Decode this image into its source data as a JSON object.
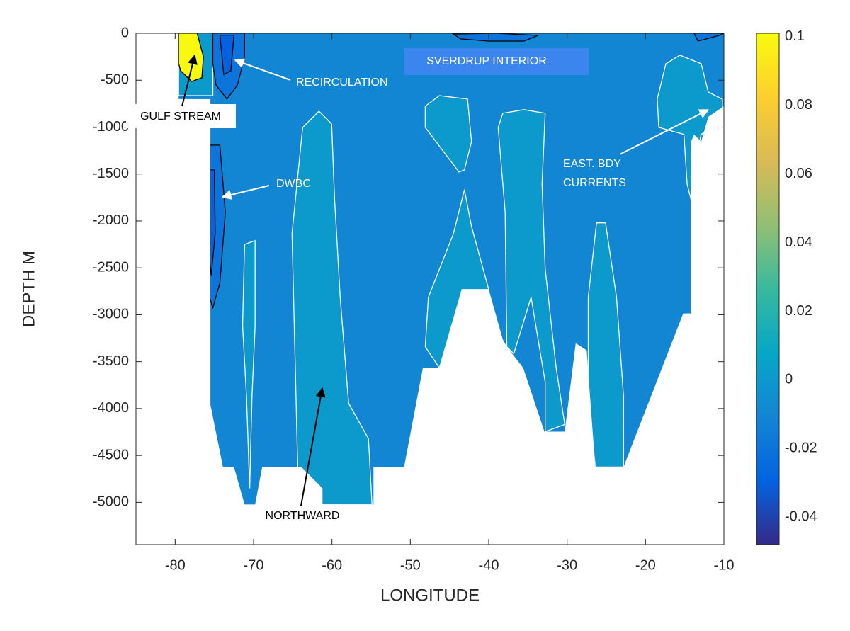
{
  "chart_data": {
    "type": "contour",
    "xlabel": "LONGITUDE",
    "ylabel": "DEPTH M",
    "xlim": [
      -85,
      -10
    ],
    "ylim": [
      -5450,
      0
    ],
    "xticks": [
      -80,
      -70,
      -60,
      -50,
      -40,
      -30,
      -20,
      -10
    ],
    "yticks": [
      0,
      -500,
      -1000,
      -1500,
      -2000,
      -2500,
      -3000,
      -3500,
      -4000,
      -4500,
      -5000
    ],
    "clim": [
      -0.048,
      0.101
    ],
    "cticks": [
      0.1,
      0.08,
      0.06,
      0.04,
      0.02,
      0,
      -0.02,
      -0.04
    ],
    "colormap": [
      "#352a87",
      "#0363e1",
      "#1485d4",
      "#06a7c6",
      "#38b99e",
      "#92bf73",
      "#d9ba56",
      "#fcce2e",
      "#f9fb0e"
    ],
    "regions": [
      {
        "value": -0.01,
        "edge": "none",
        "x": [
          -79.55,
          -10,
          -10,
          -12.0,
          -12.9,
          -13.8,
          -14.2,
          -14.2,
          -15.2,
          -22.8,
          -26.4,
          -27.5,
          -28.9,
          -30.3,
          -32.9,
          -35.6,
          -37.7,
          -38.2,
          -40.0,
          -43.4,
          -46.3,
          -48.4,
          -50.8,
          -54.7,
          -54.7,
          -61.2,
          -61.2,
          -63.9,
          -68.9,
          -69.8,
          -71.15,
          -72.5,
          -73.9,
          -75.5,
          -75.5,
          -79.55
        ],
        "y": [
          0,
          0,
          -777,
          -890,
          -1154,
          -1078,
          -1154,
          -2986,
          -2986,
          -4623,
          -4623,
          -3379,
          -3303,
          -4246,
          -4246,
          -3567,
          -3341,
          -3265,
          -2730,
          -2730,
          -3567,
          -3567,
          -4623,
          -4623,
          -5023,
          -5023,
          -4849,
          -4623,
          -4623,
          -5023,
          -5023,
          -4623,
          -4623,
          -3959,
          -701,
          -701
        ]
      },
      {
        "value": 0,
        "edge": "#ffffff",
        "x": [
          -79.55,
          -75.2,
          -75.2,
          -79.55
        ],
        "y": [
          0,
          0,
          -664,
          -664
        ]
      },
      {
        "value": 0.1,
        "edge": "#000000",
        "x": [
          -79.55,
          -77.2,
          -76.4,
          -76.6,
          -77.9,
          -79.3,
          -79.55
        ],
        "y": [
          0,
          0,
          -249,
          -475,
          -513,
          -400,
          -324
        ]
      },
      {
        "value": -0.02,
        "edge": "#000000",
        "x": [
          -75.2,
          -71.15,
          -71.15,
          -72.05,
          -73.4,
          -74.8,
          -75.2
        ],
        "y": [
          0,
          0,
          -249,
          -551,
          -701,
          -551,
          -324
        ]
      },
      {
        "value": -0.03,
        "edge": "#000000",
        "x": [
          -74.3,
          -72.5,
          -72.9,
          -73.8
        ],
        "y": [
          -20,
          -20,
          -400,
          -440
        ]
      },
      {
        "value": -0.02,
        "edge": "#000000",
        "x": [
          -76.1,
          -74.3,
          -73.6,
          -74.3,
          -75.2,
          -75.9,
          -76.4
        ],
        "y": [
          -1192,
          -1192,
          -1908,
          -2662,
          -2926,
          -2738,
          -1908
        ]
      },
      {
        "value": -0.03,
        "edge": "#000000",
        "x": [
          -75.8,
          -75.0,
          -74.9,
          -75.4,
          -75.9
        ],
        "y": [
          -1456,
          -1456,
          -2134,
          -2587,
          -2134
        ]
      },
      {
        "value": 0,
        "edge": "#ffffff",
        "x": [
          -63.74,
          -61.66,
          -60.04,
          -59.67,
          -58.95,
          -57.87,
          -55.34,
          -54.89,
          -61.21,
          -64.37,
          -65.09
        ],
        "y": [
          -1003,
          -830,
          -965,
          -1757,
          -2813,
          -3944,
          -4321,
          -5023,
          -5023,
          -4623,
          -2134
        ]
      },
      {
        "value": 0,
        "edge": "#ffffff",
        "x": [
          -71.15,
          -69.8,
          -69.8,
          -70.2,
          -70.5,
          -70.9,
          -71.4
        ],
        "y": [
          -2250,
          -2210,
          -3115,
          -3870,
          -4850,
          -3870,
          -3115
        ]
      },
      {
        "value": 0,
        "edge": "#ffffff",
        "x": [
          -48.1,
          -46.3,
          -42.7,
          -42.2,
          -43.1,
          -43.8,
          -48.1
        ],
        "y": [
          -777,
          -664,
          -701,
          -1154,
          -1456,
          -1478,
          -1003
        ]
      },
      {
        "value": 0,
        "edge": "#ffffff",
        "x": [
          -43.1,
          -42.2,
          -40.0,
          -43.4,
          -46.3,
          -48.1,
          -47.7,
          -44.5
        ],
        "y": [
          -1667,
          -2059,
          -2730,
          -2730,
          -3567,
          -3341,
          -2813,
          -2134
        ]
      },
      {
        "value": 0,
        "edge": "#ffffff",
        "x": [
          -38.2,
          -35.5,
          -32.8,
          -33.2,
          -32.8,
          -31.4,
          -30.3,
          -32.8,
          -32.8,
          -34.6,
          -36.8,
          -37.7,
          -37.9,
          -38.8
        ],
        "y": [
          -852,
          -814,
          -852,
          -1606,
          -2511,
          -3567,
          -4170,
          -4246,
          -3718,
          -2813,
          -3416,
          -3341,
          -1908,
          -1003
        ]
      },
      {
        "value": 0,
        "edge": "#ffffff",
        "x": [
          -26.25,
          -25.1,
          -23.7,
          -22.8,
          -22.8,
          -26.4,
          -27.3,
          -27.3
        ],
        "y": [
          -2021,
          -2021,
          -2813,
          -3869,
          -4623,
          -4623,
          -3869,
          -2813
        ]
      },
      {
        "value": 0,
        "edge": "#ffffff",
        "x": [
          -17.4,
          -15.6,
          -12.9,
          -12.0,
          -10.2,
          -10.2,
          -12.9,
          -14.2,
          -14.0,
          -14.7,
          -15.1,
          -18.3,
          -18.5
        ],
        "y": [
          -324,
          -234,
          -324,
          -626,
          -701,
          -928,
          -1078,
          -1531,
          -1833,
          -1606,
          -1078,
          -1003,
          -701
        ]
      },
      {
        "value": -0.02,
        "edge": "#000000",
        "x": [
          -44.5,
          -39.1,
          -33.7,
          -35.5,
          -40.0,
          -43.6
        ],
        "y": [
          -8,
          0,
          -23,
          -83,
          -83,
          -60
        ]
      },
      {
        "value": -0.02,
        "edge": "#000000",
        "x": [
          -13.8,
          -10,
          -10.6,
          -13.3
        ],
        "y": [
          0,
          0,
          -23,
          -83
        ]
      }
    ],
    "annotations": [
      "SVERDRUP INTERIOR",
      "RECIRCULATION",
      "GULF STREAM",
      "DWBC",
      "EAST. BDY",
      "CURRENTS",
      "NORTHWARD"
    ]
  }
}
